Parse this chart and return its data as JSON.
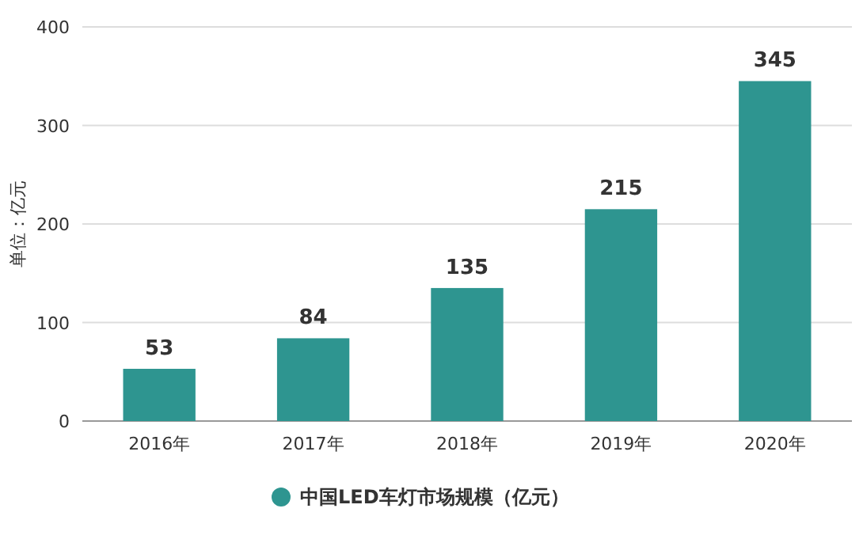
{
  "chart_data": {
    "type": "bar",
    "ylabel": "单位：亿元",
    "categories": [
      "2016年",
      "2017年",
      "2018年",
      "2019年",
      "2020年"
    ],
    "series": [
      {
        "name": "中国LED车灯市场规模（亿元）",
        "color": "#2e9590",
        "values": [
          53,
          84,
          135,
          215,
          345
        ]
      }
    ],
    "ylim": [
      0,
      400
    ],
    "yticks": [
      0,
      100,
      200,
      300,
      400
    ],
    "grid": "y",
    "legend": "bottom",
    "data_labels": true
  }
}
